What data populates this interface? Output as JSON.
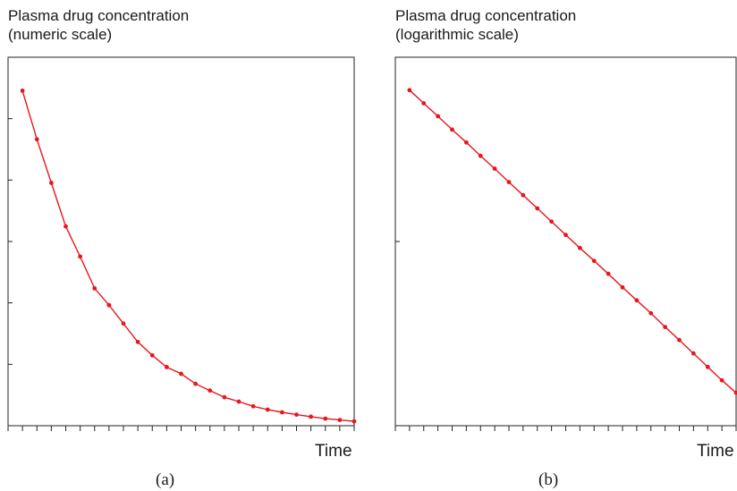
{
  "chart_data": [
    {
      "type": "line",
      "title": "Plasma drug concentration\n(numeric scale)",
      "xlabel": "Time",
      "caption": "(a)",
      "yscale": "linear",
      "grid": false,
      "color": "#e8161c",
      "x": [
        1,
        2,
        3,
        4,
        5,
        6,
        7,
        8,
        9,
        10,
        11,
        12,
        13,
        14,
        15,
        16,
        17,
        18,
        19,
        20,
        21,
        22,
        23,
        24
      ],
      "y": [
        100,
        85.5,
        72.5,
        59.5,
        50.5,
        41,
        36,
        30.5,
        25,
        21,
        17.5,
        15.5,
        12.5,
        10.5,
        8.5,
        7.2,
        5.8,
        4.8,
        4,
        3.3,
        2.7,
        2.1,
        1.7,
        1.3
      ],
      "xlim": [
        0,
        24
      ],
      "ylim": [
        0,
        110
      ]
    },
    {
      "type": "line",
      "title": "Plasma drug concentration\n(logarithmic scale)",
      "xlabel": "Time",
      "caption": "(b)",
      "yscale": "log",
      "grid": false,
      "color": "#e8161c",
      "x": [
        1,
        2,
        3,
        4,
        5,
        6,
        7,
        8,
        9,
        10,
        11,
        12,
        13,
        14,
        15,
        16,
        17,
        18,
        19,
        20,
        21,
        22,
        23,
        24
      ],
      "y": [
        100,
        85,
        72.5,
        61.5,
        52.5,
        44.5,
        38,
        32.2,
        27.4,
        23.3,
        19.8,
        16.8,
        14.3,
        12.2,
        10.4,
        8.8,
        7.5,
        6.4,
        5.4,
        4.6,
        3.9,
        3.3,
        2.8,
        2.4
      ],
      "xlim": [
        0,
        24
      ],
      "ylim": [
        1.6,
        150
      ]
    }
  ]
}
